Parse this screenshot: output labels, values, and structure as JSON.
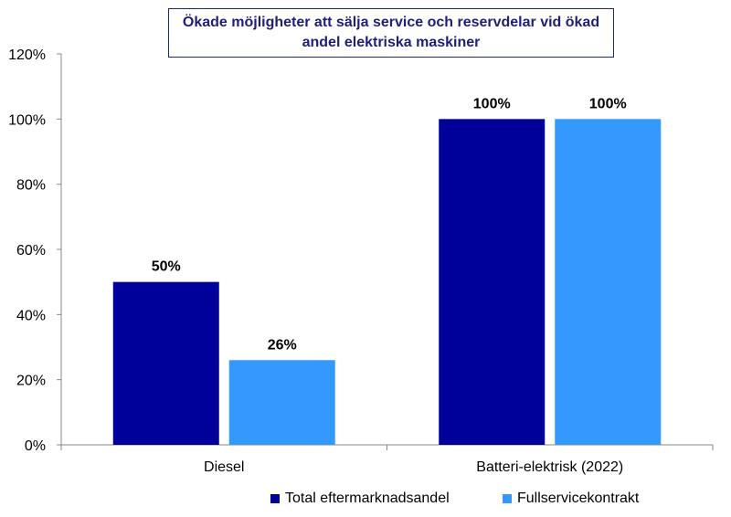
{
  "chart_data": {
    "type": "bar",
    "title_lines": [
      "Ökade möjligheter att sälja service och reservdelar vid ökad",
      "andel elektriska maskiner"
    ],
    "categories": [
      "Diesel",
      "Batteri-elektrisk (2022)"
    ],
    "series": [
      {
        "name": "Total eftermarknadsandel",
        "values": [
          50,
          100
        ],
        "labels": [
          "50%",
          "100%"
        ],
        "color": "#00009a"
      },
      {
        "name": "Fullservicekontrakt",
        "values": [
          26,
          100
        ],
        "labels": [
          "26%",
          "100%"
        ],
        "color": "#3399ff"
      }
    ],
    "ylim": [
      0,
      120
    ],
    "yticks": [
      0,
      20,
      40,
      60,
      80,
      100,
      120
    ],
    "ytick_labels": [
      "0%",
      "20%",
      "40%",
      "60%",
      "80%",
      "100%",
      "120%"
    ],
    "grid": false,
    "legend_position": "bottom-right"
  }
}
